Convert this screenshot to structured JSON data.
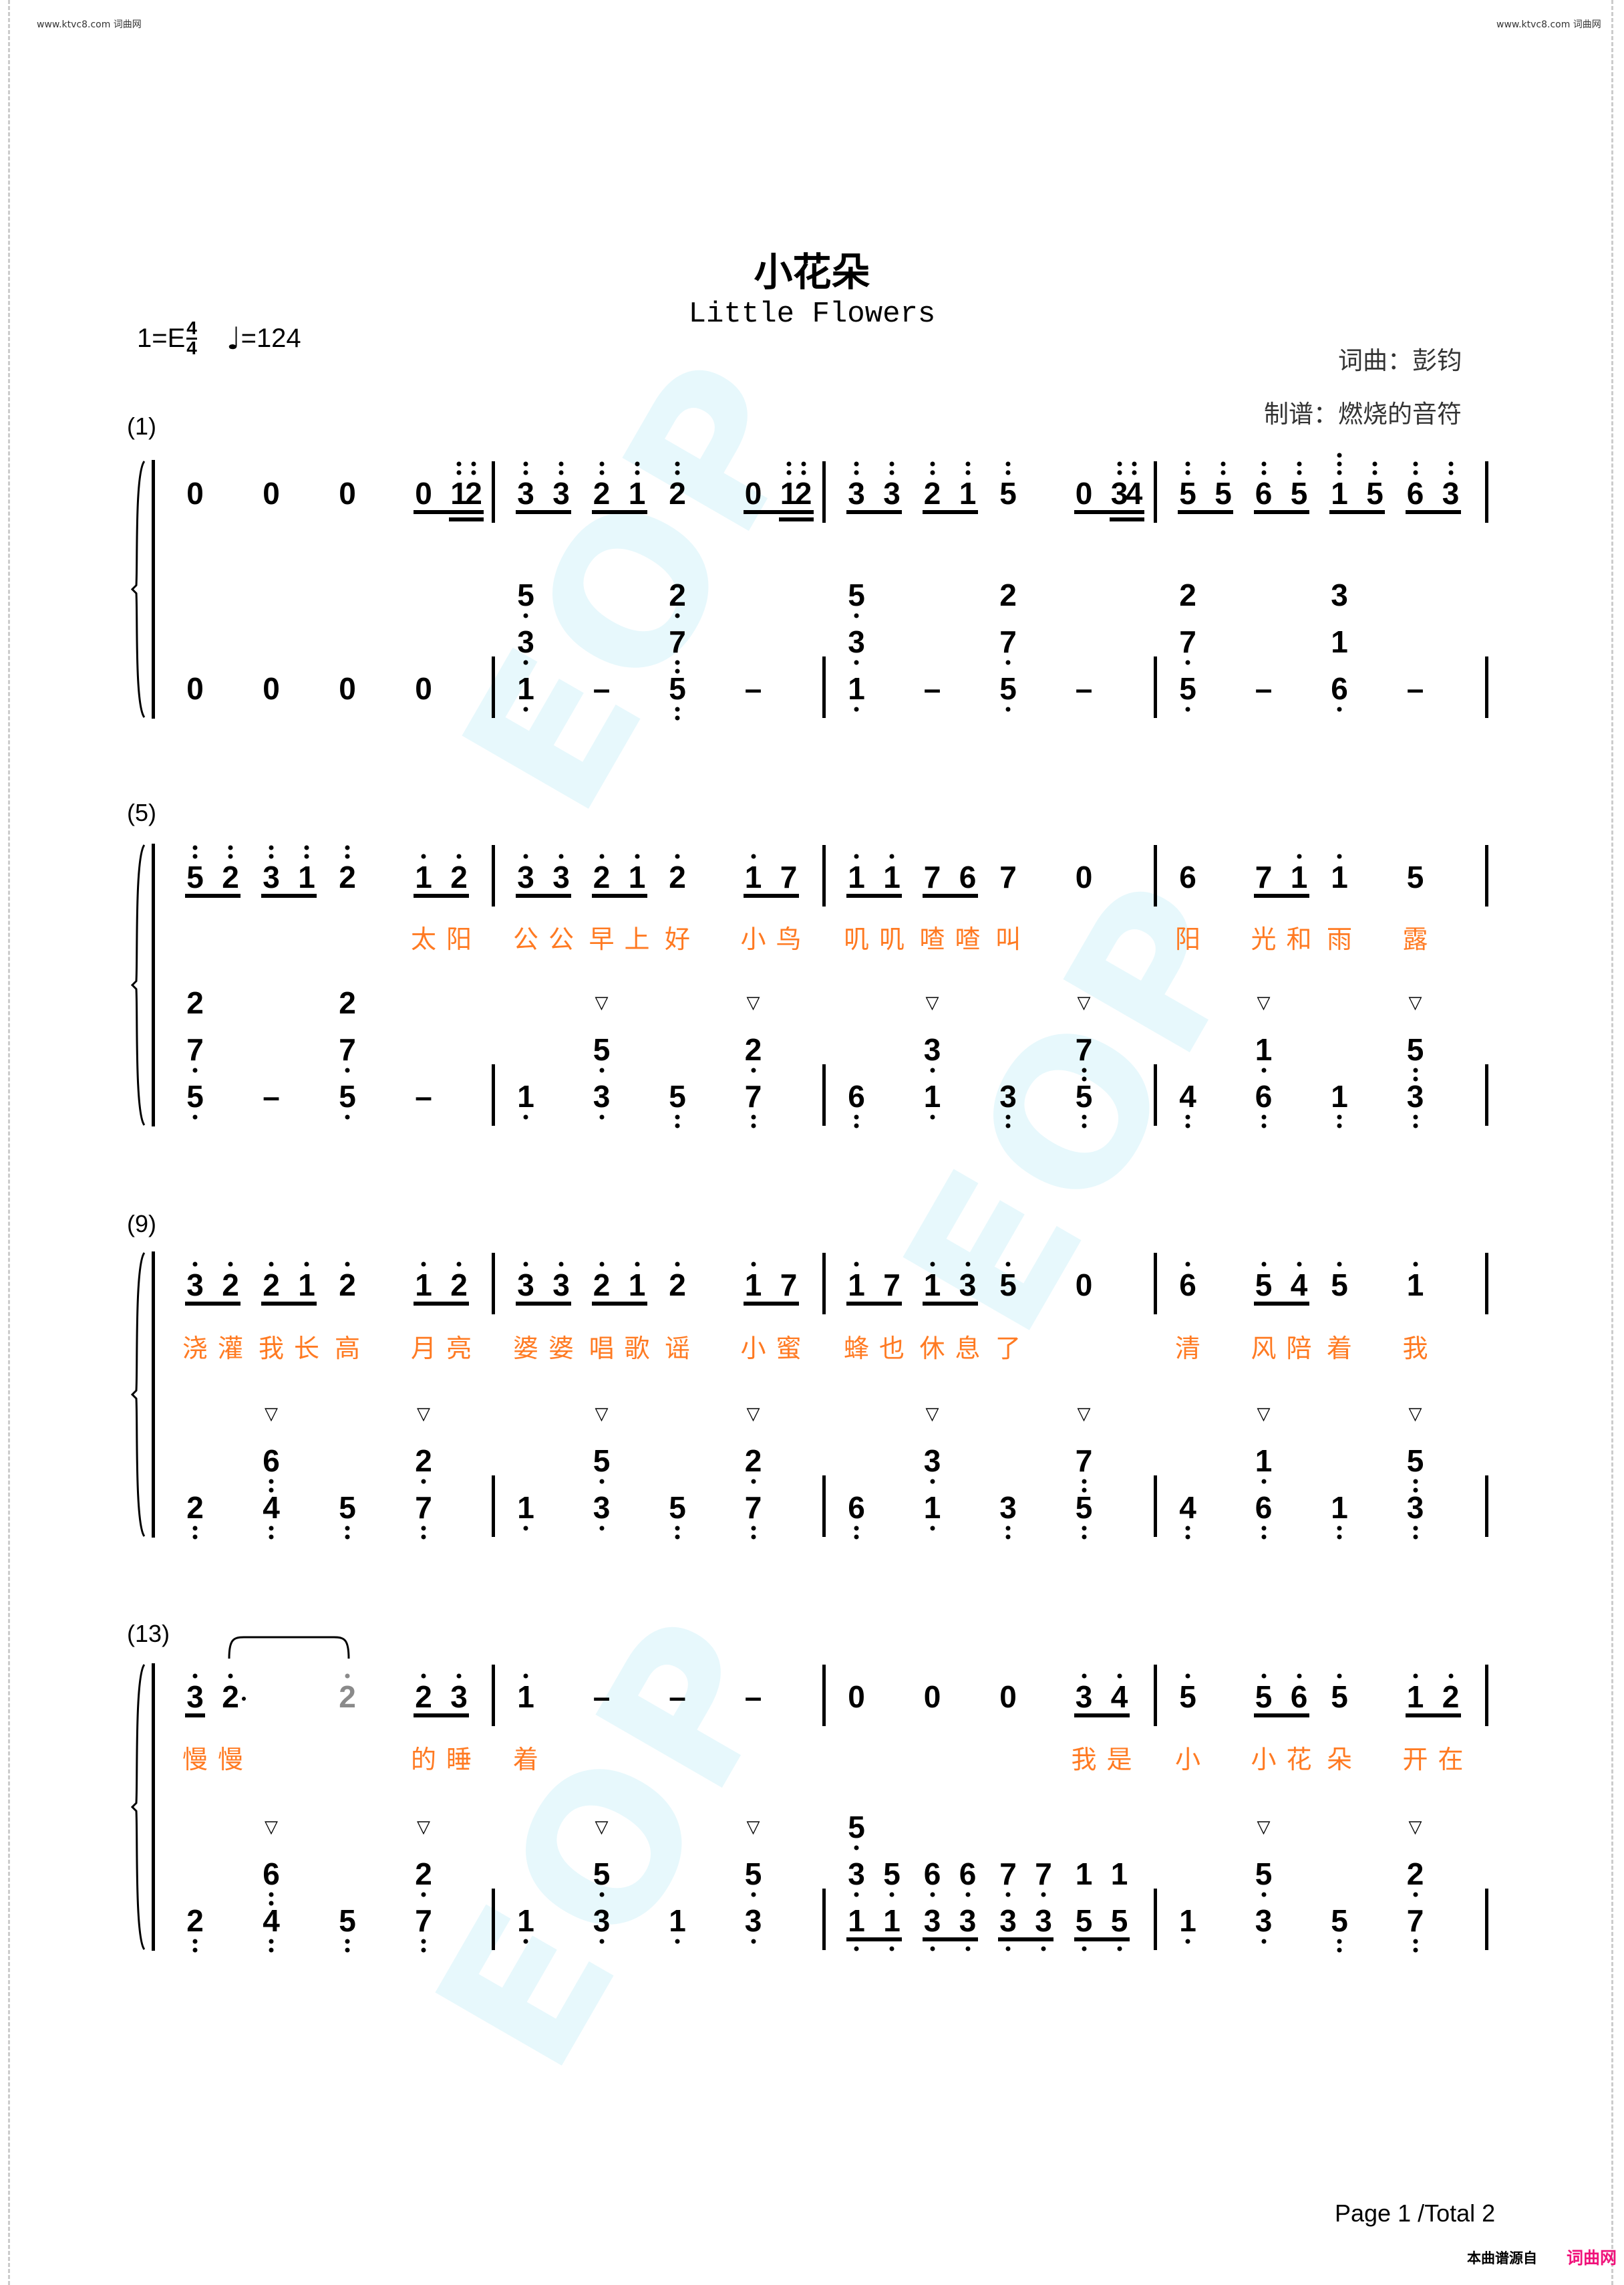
{
  "header": {
    "site_left": "www.ktvc8.com 词曲网",
    "site_right": "www.ktvc8.com 词曲网",
    "title": "小花朵",
    "subtitle": "Little Flowers",
    "key": "1=E",
    "time_top": "4",
    "time_bottom": "4",
    "tempo_icon": "quarter-note-icon",
    "tempo": "=124",
    "composer": "词曲：彭钧",
    "arranger": "制谱：燃烧的音符"
  },
  "watermark": "EOP",
  "systems": [
    {
      "label": "(1)",
      "upper": [
        [
          "0",
          "0",
          "0",
          {
            "n": [
              "0",
              "1''",
              "2''"
            ],
            "ul": [
              1,
              2,
              2
            ]
          }
        ],
        [
          {
            "n": [
              "3''",
              "3''"
            ],
            "ul": [
              1,
              1
            ]
          },
          {
            "n": [
              "2''",
              "1''"
            ],
            "ul": [
              1,
              1
            ]
          },
          "2''",
          {
            "n": [
              "0",
              "1''",
              "2''"
            ],
            "ul": [
              1,
              2,
              2
            ]
          }
        ],
        [
          {
            "n": [
              "3''",
              "3''"
            ],
            "ul": [
              1,
              1
            ]
          },
          {
            "n": [
              "2''",
              "1''"
            ],
            "ul": [
              1,
              1
            ]
          },
          "5''",
          {
            "n": [
              "0",
              "3''",
              "4''"
            ],
            "ul": [
              1,
              2,
              2
            ]
          }
        ],
        [
          {
            "n": [
              "5''",
              "5''"
            ],
            "ul": [
              1,
              1
            ]
          },
          {
            "n": [
              "6''",
              "5''"
            ],
            "ul": [
              1,
              1
            ]
          },
          {
            "n": [
              "1'''",
              "5''"
            ],
            "ul": [
              1,
              1
            ]
          },
          {
            "n": [
              "6''",
              "3''"
            ],
            "ul": [
              1,
              1
            ]
          }
        ]
      ],
      "lyrics": null,
      "lower": [
        [
          "0",
          "0",
          "0",
          "0"
        ],
        [
          [
            "5,",
            "3,",
            "1,"
          ],
          "–",
          [
            "2,",
            "7,,",
            "5,,"
          ],
          "–"
        ],
        [
          [
            "5,",
            "3,",
            "1,"
          ],
          "–",
          [
            "2",
            "7,",
            "5,"
          ],
          "–"
        ],
        [
          [
            "2",
            "7,",
            "5,"
          ],
          "–",
          [
            "3",
            "1",
            "6,"
          ],
          "–"
        ]
      ]
    },
    {
      "label": "(5)",
      "upper": [
        [
          {
            "n": [
              "5''",
              "2''"
            ],
            "ul": [
              1,
              1
            ]
          },
          {
            "n": [
              "3''",
              "1''"
            ],
            "ul": [
              1,
              1
            ]
          },
          "2''",
          {
            "n": [
              "1'",
              "2'"
            ],
            "ul": [
              1,
              1
            ]
          }
        ],
        [
          {
            "n": [
              "3'",
              "3'"
            ],
            "ul": [
              1,
              1
            ]
          },
          {
            "n": [
              "2'",
              "1'"
            ],
            "ul": [
              1,
              1
            ]
          },
          "2'",
          {
            "n": [
              "1'",
              "7"
            ],
            "ul": [
              1,
              1
            ]
          }
        ],
        [
          {
            "n": [
              "1'",
              "1'"
            ],
            "ul": [
              1,
              1
            ]
          },
          {
            "n": [
              "7",
              "6"
            ],
            "ul": [
              1,
              1
            ]
          },
          "7",
          "0"
        ],
        [
          "6",
          {
            "n": [
              "7",
              "1'"
            ],
            "ul": [
              1,
              1
            ]
          },
          "1'",
          "5"
        ]
      ],
      "lyrics": [
        [
          "",
          "",
          "",
          [
            "太",
            "阳"
          ]
        ],
        [
          [
            "公",
            "公"
          ],
          [
            "早",
            "上"
          ],
          "好",
          [
            "小",
            "鸟"
          ]
        ],
        [
          [
            "叽",
            "叽"
          ],
          [
            "喳",
            "喳"
          ],
          "叫",
          ""
        ],
        [
          "阳",
          [
            "光",
            "和"
          ],
          "雨",
          "露"
        ]
      ],
      "lower": [
        [
          [
            "2",
            "7,",
            "5,"
          ],
          "–",
          [
            "2",
            "7,",
            "5,"
          ],
          "–"
        ],
        [
          "1,",
          [
            "▽",
            "5,",
            "3,"
          ],
          "5,,",
          [
            "▽",
            "2,",
            "7,,"
          ]
        ],
        [
          "6,,",
          [
            "▽",
            "3,",
            "1,"
          ],
          "3,,",
          [
            "▽",
            "7,,",
            "5,,"
          ]
        ],
        [
          "4,,",
          [
            "▽",
            "1,",
            "6,,"
          ],
          "1,,",
          [
            "▽",
            "5,,",
            "3,,"
          ]
        ]
      ]
    },
    {
      "label": "(9)",
      "upper": [
        [
          {
            "n": [
              "3'",
              "2'"
            ],
            "ul": [
              1,
              1
            ]
          },
          {
            "n": [
              "2'",
              "1'"
            ],
            "ul": [
              1,
              1
            ]
          },
          "2'",
          {
            "n": [
              "1'",
              "2'"
            ],
            "ul": [
              1,
              1
            ]
          }
        ],
        [
          {
            "n": [
              "3'",
              "3'"
            ],
            "ul": [
              1,
              1
            ]
          },
          {
            "n": [
              "2'",
              "1'"
            ],
            "ul": [
              1,
              1
            ]
          },
          "2'",
          {
            "n": [
              "1'",
              "7"
            ],
            "ul": [
              1,
              1
            ]
          }
        ],
        [
          {
            "n": [
              "1'",
              "7"
            ],
            "ul": [
              1,
              1
            ]
          },
          {
            "n": [
              "1'",
              "3'"
            ],
            "ul": [
              1,
              1
            ]
          },
          "5'",
          "0"
        ],
        [
          "6'",
          {
            "n": [
              "5'",
              "4'"
            ],
            "ul": [
              1,
              1
            ]
          },
          "5'",
          "1'"
        ]
      ],
      "lyrics": [
        [
          [
            "浇",
            "灌"
          ],
          [
            "我",
            "长"
          ],
          "高",
          [
            "月",
            "亮"
          ]
        ],
        [
          [
            "婆",
            "婆"
          ],
          [
            "唱",
            "歌"
          ],
          "谣",
          [
            "小",
            "蜜"
          ]
        ],
        [
          [
            "蜂",
            "也"
          ],
          [
            "休",
            "息"
          ],
          "了",
          ""
        ],
        [
          "清",
          [
            "风",
            "陪"
          ],
          "着",
          "我"
        ]
      ],
      "lower": [
        [
          "2,,",
          [
            "▽",
            "6,,",
            "4,,"
          ],
          "5,,",
          [
            "▽",
            "2,",
            "7,,"
          ]
        ],
        [
          "1,",
          [
            "▽",
            "5,",
            "3,"
          ],
          "5,,",
          [
            "▽",
            "2,",
            "7,,"
          ]
        ],
        [
          "6,,",
          [
            "▽",
            "3,",
            "1,"
          ],
          "3,,",
          [
            "▽",
            "7,,",
            "5,,"
          ]
        ],
        [
          "4,,",
          [
            "▽",
            "1,",
            "6,,"
          ],
          "1,,",
          [
            "▽",
            "5,,",
            "3,,"
          ]
        ]
      ]
    },
    {
      "label": "(13)",
      "upper": [
        [
          {
            "n": [
              "3'",
              "2'·"
            ],
            "ul": [
              1,
              0
            ]
          },
          "",
          {
            "n": [
              "2'"
            ],
            "ul": [
              0
            ],
            "tied": true
          },
          {
            "n": [
              "2'",
              "3'"
            ],
            "ul": [
              1,
              1
            ]
          }
        ],
        [
          "1'",
          "–",
          "–",
          "–"
        ],
        [
          "0",
          "0",
          "0",
          {
            "n": [
              "3'",
              "4'"
            ],
            "ul": [
              1,
              1
            ]
          }
        ],
        [
          "5'",
          {
            "n": [
              "5'",
              "6'"
            ],
            "ul": [
              1,
              1
            ]
          },
          "5'",
          {
            "n": [
              "1'",
              "2'"
            ],
            "ul": [
              1,
              1
            ]
          }
        ]
      ],
      "slur": {
        "from": [
          0,
          0,
          1
        ],
        "to": [
          0,
          2,
          0
        ]
      },
      "lyrics": [
        [
          [
            "慢",
            "慢"
          ],
          "",
          "",
          [
            "的",
            "睡"
          ]
        ],
        [
          "着",
          "",
          "",
          ""
        ],
        [
          "",
          "",
          "",
          [
            "我",
            "是"
          ]
        ],
        [
          "小",
          [
            "小",
            "花"
          ],
          "朵",
          [
            "开",
            "在"
          ]
        ]
      ],
      "lower": [
        [
          "2,,",
          [
            "▽",
            "6,,",
            "4,,"
          ],
          "5,,",
          [
            "▽",
            "2,",
            "7,,"
          ]
        ],
        [
          "1,",
          [
            "▽",
            "5,",
            "3,"
          ],
          "1,",
          [
            "▽",
            "5,",
            "3,"
          ]
        ],
        [
          {
            "n": [
              [
                "5,",
                "3,",
                "1,"
              ],
              [
                "5,",
                "1,"
              ]
            ],
            "ul": [
              1,
              1
            ]
          },
          {
            "n": [
              [
                "6,",
                "3,"
              ],
              [
                "6,",
                "3,"
              ]
            ],
            "ul": [
              1,
              1
            ]
          },
          {
            "n": [
              [
                "7,",
                "3,"
              ],
              [
                "7,",
                "3,"
              ]
            ],
            "ul": [
              1,
              1
            ]
          },
          {
            "n": [
              [
                "1",
                "5,"
              ],
              [
                "1",
                "5,"
              ]
            ],
            "ul": [
              1,
              1
            ]
          }
        ],
        [
          "1,",
          [
            "▽",
            "5,",
            "3,"
          ],
          "5,,",
          [
            "▽",
            "2,",
            "7,,"
          ]
        ]
      ]
    }
  ],
  "footer": {
    "page": "Page 1 /Total 2",
    "source_label": "本曲谱源自",
    "source_logo": "词曲网"
  },
  "colors": {
    "lyrics": "#ff7a22",
    "logo": "#f0127a",
    "tied_note": "#8a8a8a"
  }
}
